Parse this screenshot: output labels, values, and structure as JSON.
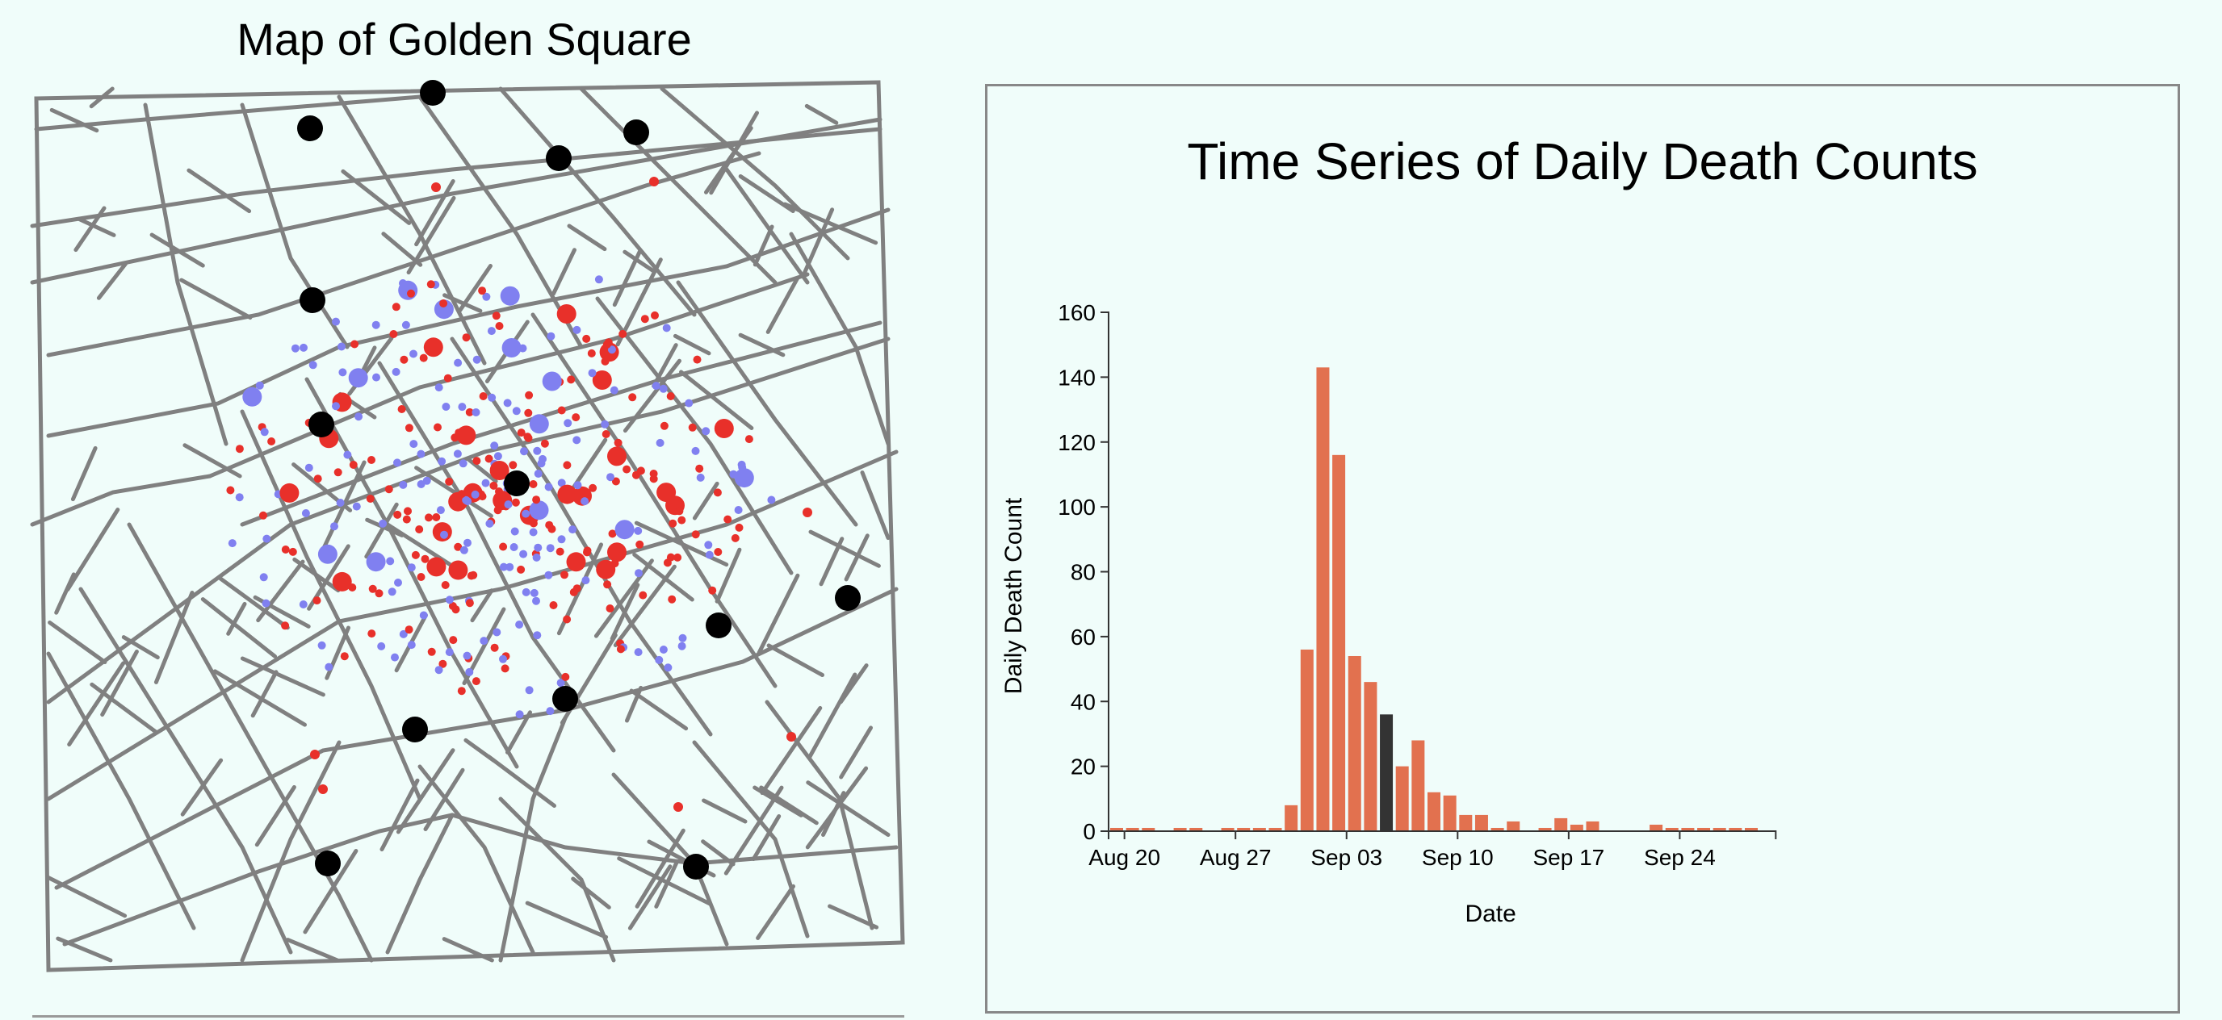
{
  "map": {
    "title": "Map of Golden Square",
    "death_color": "#e8302a",
    "alt_death_color": "#8080f0",
    "pump_color": "#000000",
    "street_color": "#808080"
  },
  "chart": {
    "title": "Time Series of Daily Death Counts",
    "highlight_color": "#333333"
  },
  "chart_data": {
    "type": "bar",
    "title": "Time Series of Daily Death Counts",
    "xlabel": "Date",
    "ylabel": "Daily Death Count",
    "ylim": [
      0,
      160
    ],
    "yticks": [
      0,
      20,
      40,
      60,
      80,
      100,
      120,
      140,
      160
    ],
    "xticks": [
      "Aug 20",
      "Aug 27",
      "Sep 03",
      "Sep 10",
      "Sep 17",
      "Sep 24"
    ],
    "bar_color": "#e2714f",
    "highlighted_category": "Sep 05",
    "grid": false,
    "categories": [
      "Aug 19",
      "Aug 20",
      "Aug 21",
      "Aug 22",
      "Aug 23",
      "Aug 24",
      "Aug 25",
      "Aug 26",
      "Aug 27",
      "Aug 28",
      "Aug 29",
      "Aug 30",
      "Aug 31",
      "Sep 01",
      "Sep 02",
      "Sep 03",
      "Sep 04",
      "Sep 05",
      "Sep 06",
      "Sep 07",
      "Sep 08",
      "Sep 09",
      "Sep 10",
      "Sep 11",
      "Sep 12",
      "Sep 13",
      "Sep 14",
      "Sep 15",
      "Sep 16",
      "Sep 17",
      "Sep 18",
      "Sep 19",
      "Sep 20",
      "Sep 21",
      "Sep 22",
      "Sep 23",
      "Sep 24",
      "Sep 25",
      "Sep 26",
      "Sep 27",
      "Sep 28",
      "Sep 29"
    ],
    "values": [
      1,
      1,
      1,
      0,
      1,
      1,
      0,
      1,
      1,
      1,
      1,
      8,
      56,
      143,
      116,
      54,
      46,
      36,
      20,
      28,
      12,
      11,
      5,
      5,
      1,
      3,
      0,
      1,
      4,
      2,
      3,
      0,
      0,
      0,
      2,
      1,
      1,
      1,
      1,
      1,
      1,
      0
    ]
  }
}
